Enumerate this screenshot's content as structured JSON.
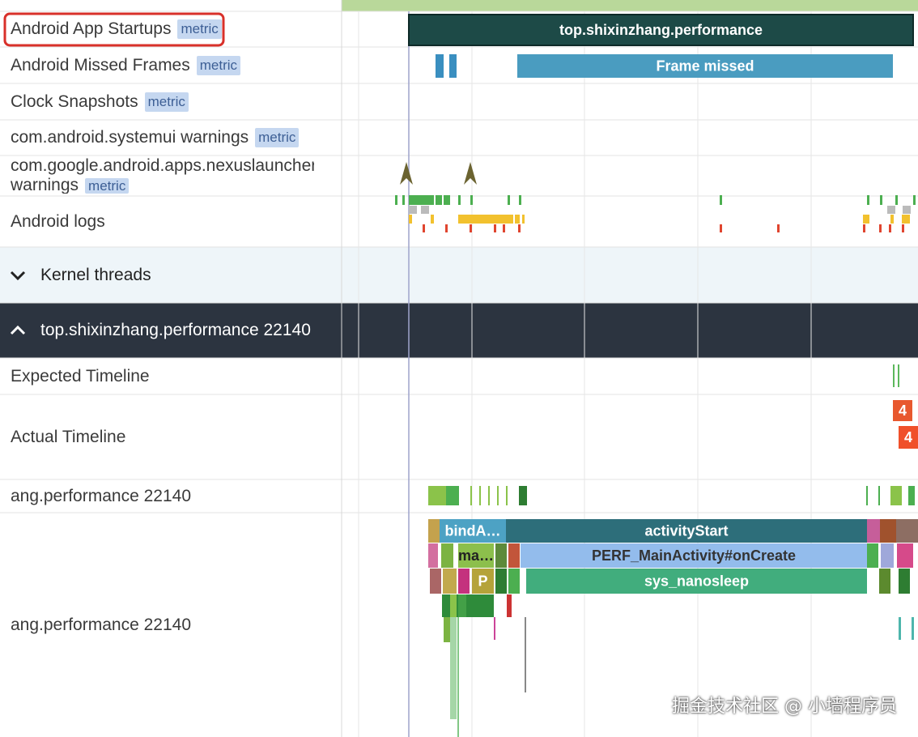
{
  "tracks": [
    {
      "label": "Android App Startups",
      "badge": "metric"
    },
    {
      "label": "Android Missed Frames",
      "badge": "metric"
    },
    {
      "label": "Clock Snapshots",
      "badge": "metric"
    },
    {
      "label": "com.android.systemui warnings",
      "badge": "metric"
    },
    {
      "label": "com.google.android.apps.nexuslauncher warnings",
      "badge": "metric"
    },
    {
      "label": "Android logs"
    }
  ],
  "groups": {
    "kernel": "Kernel threads",
    "process": "top.shixinzhang.performance 22140"
  },
  "process_tracks": [
    "Expected Timeline",
    "Actual Timeline",
    "ang.performance 22140",
    "ang.performance 22140"
  ],
  "slices": {
    "startup": "top.shixinzhang.performance",
    "frame_missed": "Frame missed",
    "actual_1": "4",
    "actual_2": "4",
    "bind": "bindA…",
    "activity": "activityStart",
    "main": "ma…",
    "oncreate": "PERF_MainActivity#onCreate",
    "p": "P",
    "sleep": "sys_nanosleep"
  },
  "watermark": "掘金技术社区 @ 小墙程序员"
}
